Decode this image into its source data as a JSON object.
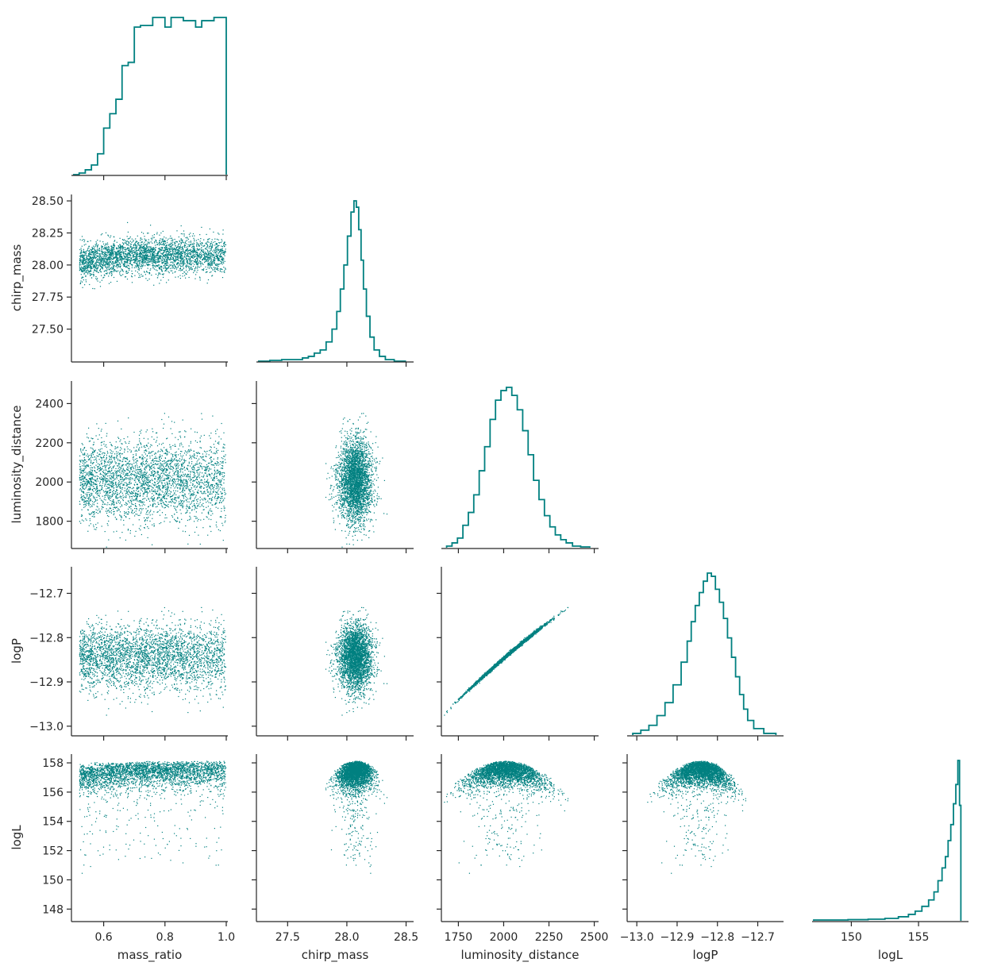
{
  "chart_data": {
    "type": "scatter",
    "title": "",
    "plot_kind": "corner",
    "color": "#008080",
    "variables": [
      {
        "name": "mass_ratio",
        "label": "mass_ratio",
        "range": [
          0.5,
          1.0
        ],
        "ticks": [
          {
            "v": 0.6,
            "label": "0.6"
          },
          {
            "v": 0.8,
            "label": "0.8"
          },
          {
            "v": 1.0,
            "label": "1.0"
          }
        ]
      },
      {
        "name": "chirp_mass",
        "label": "chirp_mass",
        "range": [
          27.25,
          28.55
        ],
        "ticks": [
          {
            "v": 27.5,
            "label": "27.5"
          },
          {
            "v": 28.0,
            "label": "28.0"
          },
          {
            "v": 28.5,
            "label": "28.5"
          }
        ],
        "yticks": [
          {
            "v": 27.5,
            "label": "27.50"
          },
          {
            "v": 27.75,
            "label": "27.75"
          },
          {
            "v": 28.0,
            "label": "28.00"
          },
          {
            "v": 28.25,
            "label": "28.25"
          },
          {
            "v": 28.5,
            "label": "28.50"
          }
        ]
      },
      {
        "name": "luminosity_distance",
        "label": "luminosity_distance",
        "range": [
          1665,
          2515
        ],
        "ticks": [
          {
            "v": 1750,
            "label": "1750"
          },
          {
            "v": 2000,
            "label": "2000"
          },
          {
            "v": 2250,
            "label": "2250"
          },
          {
            "v": 2500,
            "label": "2500"
          }
        ],
        "yticks": [
          {
            "v": 1800,
            "label": "1800"
          },
          {
            "v": 2000,
            "label": "2000"
          },
          {
            "v": 2200,
            "label": "2200"
          },
          {
            "v": 2400,
            "label": "2400"
          }
        ]
      },
      {
        "name": "logP",
        "label": "logP",
        "range": [
          -13.02,
          -12.64
        ],
        "ticks": [
          {
            "v": -13.0,
            "label": "−13.0"
          },
          {
            "v": -12.9,
            "label": "−12.9"
          },
          {
            "v": -12.8,
            "label": "−12.8"
          },
          {
            "v": -12.7,
            "label": "−12.7"
          }
        ],
        "yticks": [
          {
            "v": -13.0,
            "label": "−13.0"
          },
          {
            "v": -12.9,
            "label": "−12.9"
          },
          {
            "v": -12.8,
            "label": "−12.8"
          },
          {
            "v": -12.7,
            "label": "−12.7"
          }
        ]
      },
      {
        "name": "logL",
        "label": "logL",
        "range": [
          147.2,
          158.6
        ],
        "ticks": [
          {
            "v": 150,
            "label": "150"
          },
          {
            "v": 155,
            "label": "155"
          }
        ],
        "yticks": [
          {
            "v": 148,
            "label": "148"
          },
          {
            "v": 150,
            "label": "150"
          },
          {
            "v": 152,
            "label": "152"
          },
          {
            "v": 154,
            "label": "154"
          },
          {
            "v": 156,
            "label": "156"
          },
          {
            "v": 158,
            "label": "158"
          }
        ]
      }
    ],
    "histograms": {
      "mass_ratio": {
        "x": [
          0.51,
          0.53,
          0.55,
          0.57,
          0.59,
          0.61,
          0.63,
          0.65,
          0.67,
          0.69,
          0.71,
          0.73,
          0.75,
          0.77,
          0.79,
          0.81,
          0.83,
          0.85,
          0.87,
          0.89,
          0.91,
          0.93,
          0.95,
          0.97,
          0.99
        ],
        "density": [
          0.0,
          0.01,
          0.03,
          0.06,
          0.13,
          0.29,
          0.38,
          0.47,
          0.68,
          0.7,
          0.92,
          0.93,
          0.93,
          0.98,
          0.98,
          0.92,
          0.98,
          0.98,
          0.96,
          0.96,
          0.92,
          0.96,
          0.96,
          0.98,
          0.98
        ]
      },
      "chirp_mass": {
        "x": [
          27.3,
          27.4,
          27.5,
          27.6,
          27.65,
          27.7,
          27.75,
          27.8,
          27.85,
          27.9,
          27.93,
          27.96,
          27.99,
          28.02,
          28.05,
          28.07,
          28.09,
          28.11,
          28.13,
          28.15,
          28.18,
          28.21,
          28.25,
          28.3,
          28.35,
          28.45
        ],
        "density": [
          0.0,
          0.005,
          0.01,
          0.01,
          0.02,
          0.03,
          0.05,
          0.07,
          0.12,
          0.2,
          0.31,
          0.45,
          0.6,
          0.78,
          0.93,
          1.0,
          0.96,
          0.82,
          0.63,
          0.45,
          0.28,
          0.15,
          0.07,
          0.03,
          0.01,
          0.0
        ]
      },
      "luminosity_distance": {
        "x": [
          1700,
          1730,
          1760,
          1790,
          1820,
          1850,
          1880,
          1910,
          1940,
          1970,
          2000,
          2030,
          2060,
          2090,
          2120,
          2150,
          2180,
          2210,
          2240,
          2270,
          2300,
          2330,
          2360,
          2400,
          2450
        ],
        "density": [
          0.01,
          0.03,
          0.06,
          0.14,
          0.22,
          0.33,
          0.48,
          0.63,
          0.8,
          0.92,
          0.98,
          1.0,
          0.95,
          0.86,
          0.73,
          0.58,
          0.42,
          0.3,
          0.2,
          0.13,
          0.08,
          0.05,
          0.03,
          0.01,
          0.005
        ]
      },
      "logP": {
        "x": [
          -13.0,
          -12.98,
          -12.96,
          -12.94,
          -12.92,
          -12.9,
          -12.88,
          -12.87,
          -12.86,
          -12.85,
          -12.84,
          -12.83,
          -12.82,
          -12.81,
          -12.8,
          -12.79,
          -12.78,
          -12.77,
          -12.76,
          -12.75,
          -12.74,
          -12.73,
          -12.72,
          -12.7,
          -12.67
        ],
        "density": [
          0.01,
          0.03,
          0.06,
          0.12,
          0.2,
          0.31,
          0.45,
          0.58,
          0.7,
          0.8,
          0.88,
          0.95,
          1.0,
          0.98,
          0.9,
          0.82,
          0.72,
          0.6,
          0.48,
          0.36,
          0.25,
          0.16,
          0.09,
          0.04,
          0.01
        ]
      },
      "logL": {
        "x": [
          147.5,
          149,
          150.5,
          152,
          153,
          154,
          154.5,
          155,
          155.5,
          156,
          156.3,
          156.6,
          156.9,
          157.1,
          157.3,
          157.5,
          157.7,
          157.85,
          158.0,
          158.1
        ],
        "density": [
          0.005,
          0.005,
          0.007,
          0.01,
          0.015,
          0.025,
          0.04,
          0.06,
          0.09,
          0.13,
          0.18,
          0.25,
          0.33,
          0.4,
          0.5,
          0.6,
          0.73,
          0.85,
          1.0,
          0.72
        ]
      }
    },
    "n_samples": 6000,
    "marginal_style": "step",
    "layout": "lower-triangle"
  }
}
